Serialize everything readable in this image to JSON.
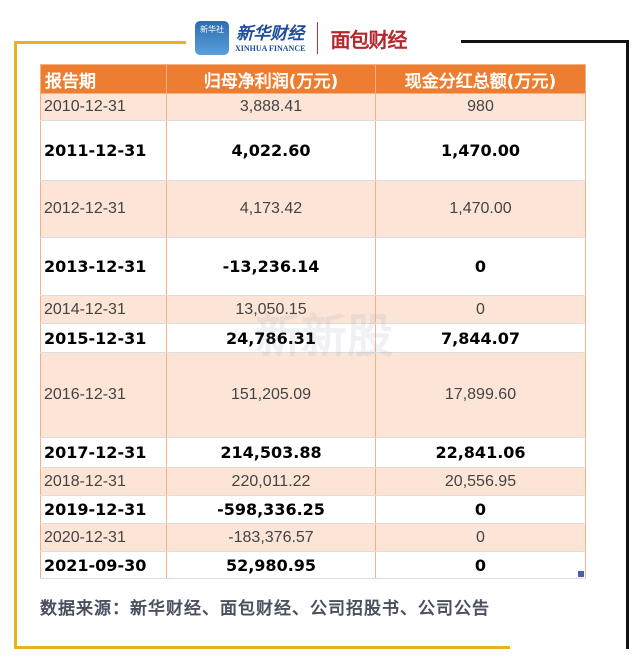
{
  "logos": {
    "xinhua_icon": "新华社",
    "xinhua_cn": "新华财经",
    "xinhua_en": "XINHUA FINANCE",
    "mianbao": "面包财经"
  },
  "table": {
    "headers": [
      "报告期",
      "归母净利润(万元)",
      "现金分红总额(万元)"
    ],
    "rows": [
      [
        "2010-12-31",
        "3,888.41",
        "980"
      ],
      [
        "2011-12-31",
        "4,022.60",
        "1,470.00"
      ],
      [
        "2012-12-31",
        "4,173.42",
        "1,470.00"
      ],
      [
        "2013-12-31",
        "-13,236.14",
        "0"
      ],
      [
        "2014-12-31",
        "13,050.15",
        "0"
      ],
      [
        "2015-12-31",
        "24,786.31",
        "7,844.07"
      ],
      [
        "2016-12-31",
        "151,205.09",
        "17,899.60"
      ],
      [
        "2017-12-31",
        "214,503.88",
        "22,841.06"
      ],
      [
        "2018-12-31",
        "220,011.22",
        "20,556.95"
      ],
      [
        "2019-12-31",
        "-598,336.25",
        "0"
      ],
      [
        "2020-12-31",
        "-183,376.57",
        "0"
      ],
      [
        "2021-09-30",
        "52,980.95",
        "0"
      ]
    ]
  },
  "watermark": "新新股",
  "source": "数据来源：新华财经、面包财经、公司招股书、公司公告",
  "colors": {
    "header": "#ed7d31",
    "shade": "#fce4d6",
    "frame_gold": "#e8b21c"
  }
}
